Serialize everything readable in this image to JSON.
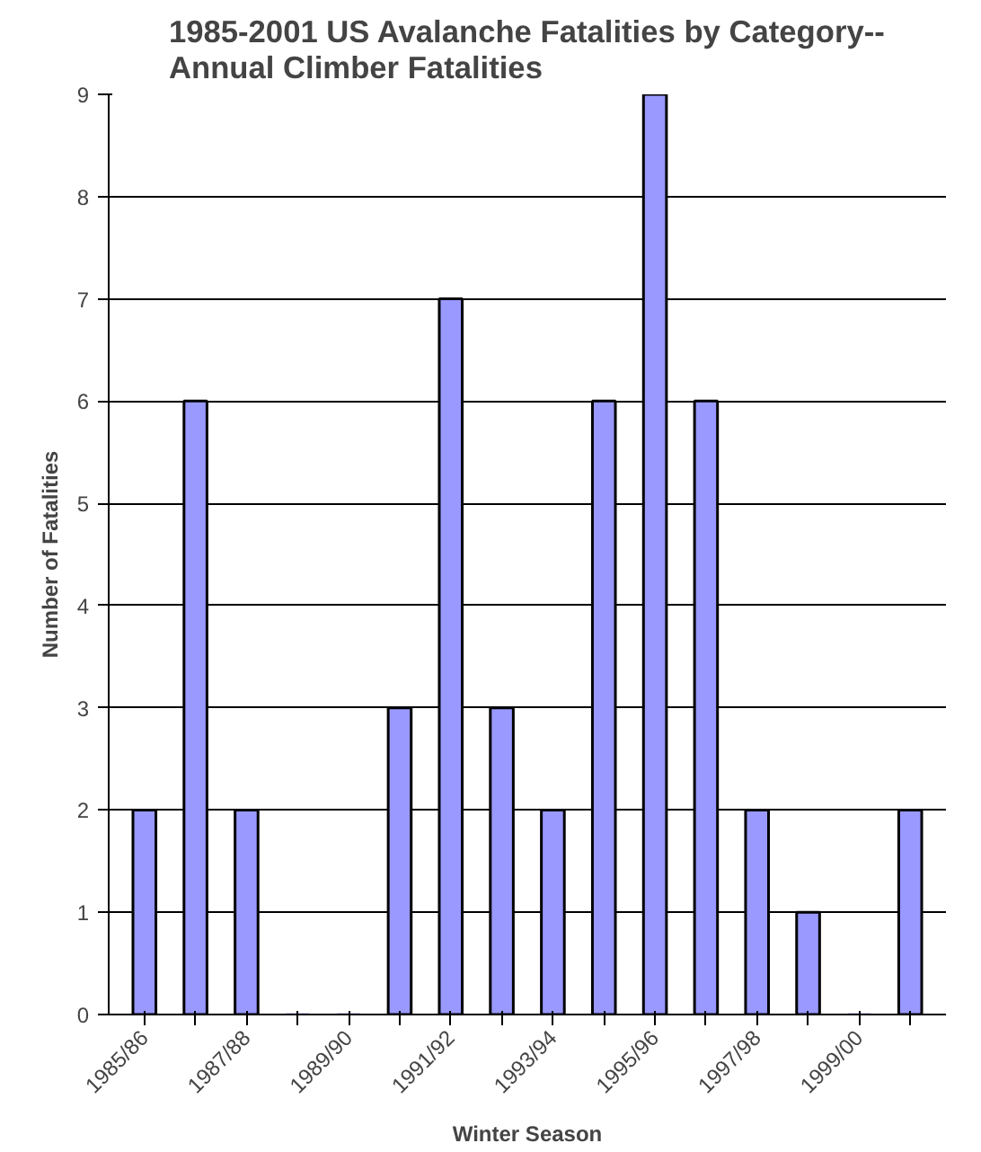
{
  "chart_data": {
    "type": "bar",
    "title": "1985-2001 US Avalanche Fatalities by Category--\nAnnual Climber Fatalities",
    "xlabel": "Winter Season",
    "ylabel": "Number of Fatalities",
    "categories": [
      "1985/86",
      null,
      "1987/88",
      null,
      "1989/90",
      null,
      "1991/92",
      null,
      "1993/94",
      null,
      "1995/96",
      null,
      "1997/98",
      null,
      "1999/00",
      null
    ],
    "values": [
      2,
      6,
      2,
      0,
      0,
      3,
      7,
      3,
      2,
      6,
      9,
      6,
      2,
      1,
      0,
      2
    ],
    "color": "#9999ff",
    "ylim": [
      0,
      9
    ],
    "yticks": [
      0,
      1,
      2,
      3,
      4,
      5,
      6,
      7,
      8,
      9
    ],
    "grid": "y"
  }
}
